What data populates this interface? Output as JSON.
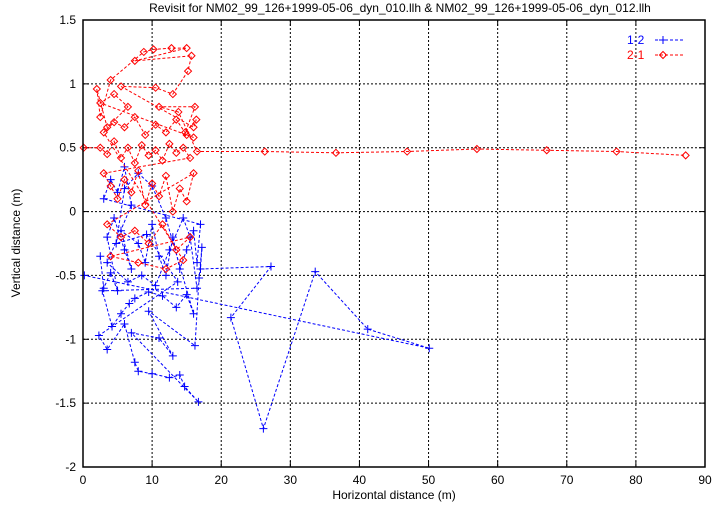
{
  "chart_data": {
    "type": "line",
    "title": "Revisit for NM02_99_126+1999-05-06_dyn_010.llh & NM02_99_126+1999-05-06_dyn_012.llh",
    "xlabel": "Horizontal distance (m)",
    "ylabel": "Vertical distance (m)",
    "xlim": [
      0,
      90
    ],
    "ylim": [
      -2,
      1.5
    ],
    "xticks": [
      "0",
      "10",
      "20",
      "30",
      "40",
      "50",
      "60",
      "70",
      "80",
      "90"
    ],
    "yticks": [
      "-2",
      "-1.5",
      "-1",
      "-0.5",
      "0",
      "0.5",
      "1",
      "1.5"
    ],
    "xtick_values": [
      0,
      10,
      20,
      30,
      40,
      50,
      60,
      70,
      80,
      90
    ],
    "ytick_values": [
      -2,
      -1.5,
      -1,
      -0.5,
      0,
      0.5,
      1,
      1.5
    ],
    "grid": true,
    "legend_position": "top-right",
    "series": [
      {
        "name": "1-2",
        "color": "#0000ff",
        "marker": "plus",
        "points": [
          [
            2.5,
            -0.35
          ],
          [
            3.0,
            -0.6
          ],
          [
            4.0,
            -0.48
          ],
          [
            5.0,
            -0.62
          ],
          [
            3.5,
            -0.2
          ],
          [
            4.5,
            -0.05
          ],
          [
            6.0,
            -0.3
          ],
          [
            7.0,
            -0.45
          ],
          [
            5.5,
            -0.15
          ],
          [
            8.0,
            -0.25
          ],
          [
            9.0,
            -0.4
          ],
          [
            10.0,
            -0.1
          ],
          [
            11.0,
            -0.35
          ],
          [
            12.0,
            -0.5
          ],
          [
            13.0,
            -0.2
          ],
          [
            14.0,
            -0.45
          ],
          [
            15.0,
            -0.3
          ],
          [
            16.0,
            -0.15
          ],
          [
            16.5,
            -0.4
          ],
          [
            17.0,
            -0.1
          ],
          [
            3.0,
            0.1
          ],
          [
            4.0,
            0.25
          ],
          [
            5.0,
            0.15
          ],
          [
            6.0,
            0.35
          ],
          [
            7.0,
            0.05
          ],
          [
            3.5,
            -0.4
          ],
          [
            6.5,
            -0.55
          ],
          [
            8.5,
            -0.5
          ],
          [
            10.5,
            -0.58
          ],
          [
            12.5,
            -0.3
          ],
          [
            14.5,
            -0.05
          ],
          [
            15.5,
            -0.2
          ],
          [
            16.5,
            -0.6
          ],
          [
            2.8,
            -0.62
          ],
          [
            4.2,
            -0.9
          ],
          [
            5.5,
            -0.8
          ],
          [
            6.7,
            -0.72
          ],
          [
            7.5,
            -0.68
          ],
          [
            9.5,
            -0.63
          ],
          [
            11.5,
            -0.66
          ],
          [
            13.5,
            -0.75
          ],
          [
            15.0,
            -0.65
          ],
          [
            16.0,
            -0.8
          ],
          [
            12.0,
            -0.05
          ],
          [
            10.0,
            0.2
          ],
          [
            8.0,
            0.3
          ],
          [
            6.0,
            0.18
          ],
          [
            4.8,
            -0.25
          ],
          [
            9.2,
            -0.18
          ],
          [
            13.7,
            -0.55
          ],
          [
            2.3,
            -0.97
          ],
          [
            3.5,
            -1.08
          ],
          [
            6.0,
            -0.88
          ],
          [
            7.5,
            -1.18
          ],
          [
            8.0,
            -1.25
          ],
          [
            10.0,
            -1.27
          ],
          [
            12.5,
            -1.3
          ],
          [
            14.0,
            -1.28
          ],
          [
            14.7,
            -1.37
          ],
          [
            16.7,
            -1.49
          ],
          [
            7.0,
            -0.95
          ],
          [
            11.0,
            -0.99
          ],
          [
            13.0,
            -1.13
          ],
          [
            9.5,
            -0.78
          ],
          [
            16.2,
            -1.05
          ],
          [
            16.8,
            -0.52
          ],
          [
            17.2,
            -0.28
          ],
          [
            17.0,
            -0.45
          ],
          [
            27.2,
            -0.43
          ],
          [
            21.4,
            -0.83
          ],
          [
            26.1,
            -1.7
          ],
          [
            33.6,
            -0.47
          ],
          [
            41.2,
            -0.92
          ],
          [
            50.1,
            -1.07
          ],
          [
            0.2,
            -0.5
          ]
        ]
      },
      {
        "name": "2-1",
        "color": "#ff0000",
        "marker": "diamond",
        "points": [
          [
            0.1,
            0.5
          ],
          [
            2.5,
            0.5
          ],
          [
            3.5,
            0.45
          ],
          [
            4.5,
            0.55
          ],
          [
            5.5,
            0.42
          ],
          [
            6.5,
            0.5
          ],
          [
            7.5,
            0.38
          ],
          [
            8.5,
            0.52
          ],
          [
            9.5,
            0.44
          ],
          [
            10.5,
            0.48
          ],
          [
            11.5,
            0.4
          ],
          [
            12.5,
            0.53
          ],
          [
            13.5,
            0.46
          ],
          [
            14.5,
            0.5
          ],
          [
            15.5,
            0.42
          ],
          [
            3.0,
            0.3
          ],
          [
            4.0,
            0.2
          ],
          [
            5.0,
            0.1
          ],
          [
            6.0,
            0.25
          ],
          [
            7.0,
            0.15
          ],
          [
            8.0,
            0.32
          ],
          [
            9.0,
            0.05
          ],
          [
            10.0,
            0.22
          ],
          [
            11.0,
            0.12
          ],
          [
            12.0,
            0.28
          ],
          [
            13.0,
            0.0
          ],
          [
            14.0,
            0.18
          ],
          [
            15.0,
            0.08
          ],
          [
            16.0,
            0.3
          ],
          [
            3.5,
            -0.1
          ],
          [
            5.5,
            -0.2
          ],
          [
            7.5,
            -0.15
          ],
          [
            9.5,
            -0.25
          ],
          [
            11.5,
            -0.1
          ],
          [
            13.5,
            -0.3
          ],
          [
            15.5,
            -0.2
          ],
          [
            4.0,
            -0.35
          ],
          [
            8.0,
            -0.4
          ],
          [
            12.0,
            -0.45
          ],
          [
            14.5,
            -0.38
          ],
          [
            3.0,
            0.62
          ],
          [
            4.5,
            0.7
          ],
          [
            6.0,
            0.66
          ],
          [
            7.5,
            0.74
          ],
          [
            9.0,
            0.6
          ],
          [
            10.5,
            0.68
          ],
          [
            12.0,
            0.62
          ],
          [
            13.5,
            0.72
          ],
          [
            15.0,
            0.6
          ],
          [
            16.0,
            0.58
          ],
          [
            2.5,
            0.85
          ],
          [
            4.5,
            0.92
          ],
          [
            6.5,
            0.82
          ],
          [
            3.5,
            0.66
          ],
          [
            2.0,
            0.96
          ],
          [
            2.5,
            0.74
          ],
          [
            4.0,
            1.03
          ],
          [
            8.8,
            1.25
          ],
          [
            10.2,
            1.27
          ],
          [
            12.8,
            1.28
          ],
          [
            15.0,
            1.28
          ],
          [
            7.5,
            1.18
          ],
          [
            15.7,
            1.22
          ],
          [
            15.2,
            1.1
          ],
          [
            13.0,
            0.92
          ],
          [
            10.5,
            0.97
          ],
          [
            5.5,
            0.98
          ],
          [
            16.0,
            0.66
          ],
          [
            16.4,
            0.72
          ],
          [
            14.8,
            0.62
          ],
          [
            16.2,
            0.82
          ],
          [
            11.0,
            0.82
          ],
          [
            13.8,
            0.78
          ],
          [
            16.5,
            0.47
          ],
          [
            26.3,
            0.47
          ],
          [
            36.6,
            0.46
          ],
          [
            46.9,
            0.47
          ],
          [
            57.0,
            0.49
          ],
          [
            67.1,
            0.48
          ],
          [
            77.2,
            0.47
          ],
          [
            87.2,
            0.44
          ]
        ]
      }
    ]
  }
}
